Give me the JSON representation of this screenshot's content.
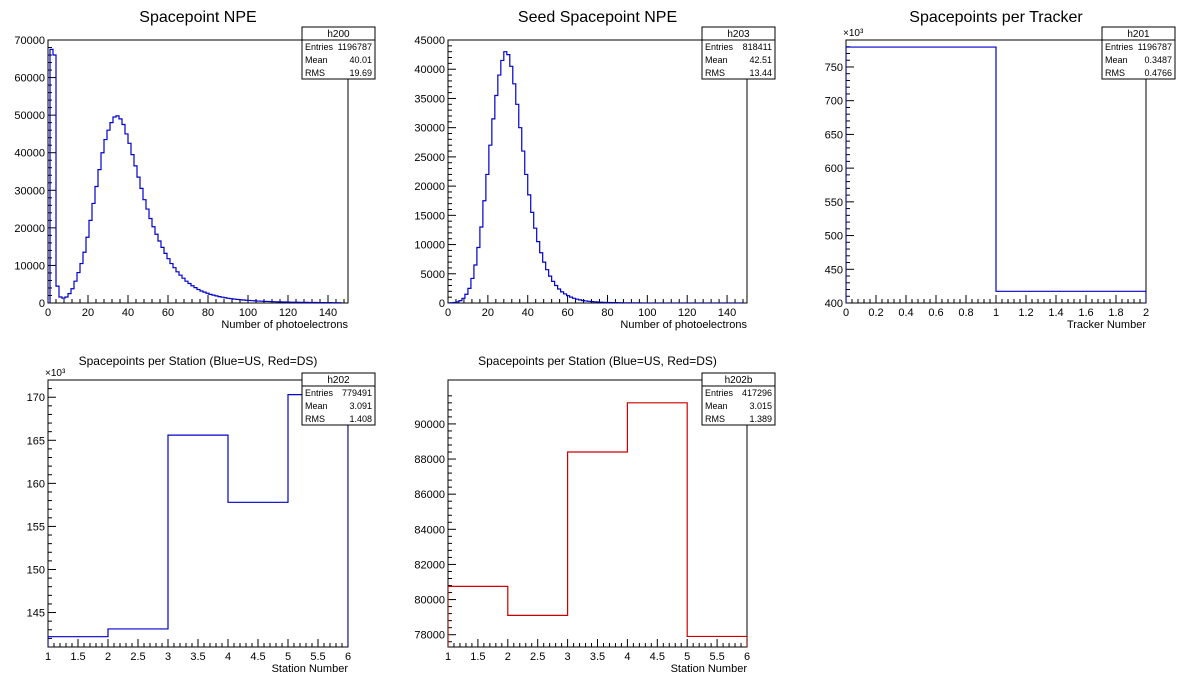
{
  "chart_data": [
    {
      "id": "h200",
      "type": "histogram",
      "title": "Spacepoint NPE",
      "xlabel": "Number of photoelectrons",
      "ylabel": "",
      "xlim": [
        0,
        150
      ],
      "ylim": [
        0,
        70000
      ],
      "xticks": [
        0,
        20,
        40,
        60,
        80,
        100,
        120,
        140
      ],
      "xtick_labels": [
        "0",
        "20",
        "40",
        "60",
        "80",
        "100",
        "120",
        "140"
      ],
      "yticks": [
        0,
        10000,
        20000,
        30000,
        40000,
        50000,
        60000,
        70000
      ],
      "ytick_labels": [
        "0",
        "10000",
        "20000",
        "30000",
        "40000",
        "50000",
        "60000",
        "70000"
      ],
      "y_multiplier": "",
      "line_color": "#0000cc",
      "bin_edges_start": 1,
      "bin_width": 1.5,
      "values": [
        67500,
        66000,
        4500,
        1600,
        1300,
        1600,
        2500,
        3800,
        5800,
        8100,
        10500,
        13500,
        17500,
        22000,
        26500,
        31000,
        35500,
        40000,
        43500,
        46000,
        48000,
        49500,
        49800,
        49000,
        47500,
        45000,
        42500,
        39500,
        36500,
        33500,
        30500,
        27500,
        25000,
        22500,
        20300,
        18300,
        16500,
        14800,
        13200,
        11800,
        10500,
        9400,
        8300,
        7400,
        6600,
        5800,
        5200,
        4600,
        4100,
        3600,
        3200,
        2900,
        2600,
        2300,
        2100,
        1900,
        1700,
        1550,
        1400,
        1250,
        1150,
        1050,
        950,
        880,
        800,
        740,
        680,
        620,
        570,
        520,
        480,
        440,
        410,
        380,
        350,
        320,
        300,
        280,
        260,
        240,
        220,
        200,
        190,
        180,
        170,
        160,
        150,
        140,
        130,
        120,
        110,
        100,
        95,
        90,
        85,
        80,
        75
      ],
      "stats": {
        "name": "h200",
        "rows": [
          {
            "label": "Entries",
            "value": "1196787"
          },
          {
            "label": "Mean",
            "value": "40.01"
          },
          {
            "label": "RMS",
            "value": "19.69"
          }
        ]
      }
    },
    {
      "id": "h203",
      "type": "histogram",
      "title": "Seed Spacepoint NPE",
      "xlabel": "Number of photoelectrons",
      "ylabel": "",
      "xlim": [
        0,
        150
      ],
      "ylim": [
        0,
        45000
      ],
      "xticks": [
        0,
        20,
        40,
        60,
        80,
        100,
        120,
        140
      ],
      "xtick_labels": [
        "0",
        "20",
        "40",
        "60",
        "80",
        "100",
        "120",
        "140"
      ],
      "yticks": [
        0,
        5000,
        10000,
        15000,
        20000,
        25000,
        30000,
        35000,
        40000,
        45000
      ],
      "ytick_labels": [
        "0",
        "5000",
        "10000",
        "15000",
        "20000",
        "25000",
        "30000",
        "35000",
        "40000",
        "45000"
      ],
      "y_multiplier": "",
      "line_color": "#0000cc",
      "bin_edges_start": 1,
      "bin_width": 1.5,
      "values": [
        50,
        100,
        200,
        400,
        800,
        1500,
        2500,
        4200,
        6500,
        9500,
        13000,
        17500,
        22000,
        27000,
        31500,
        35500,
        39000,
        41500,
        43000,
        42500,
        40500,
        37500,
        34000,
        30000,
        26000,
        22000,
        18500,
        15500,
        12800,
        10500,
        8600,
        7000,
        5700,
        4600,
        3700,
        3000,
        2400,
        1900,
        1550,
        1250,
        1000,
        800,
        650,
        530,
        430,
        350,
        290,
        240,
        200,
        170,
        140,
        120,
        100,
        85,
        70,
        60,
        50,
        42,
        36,
        30,
        26,
        22,
        19,
        16,
        14,
        12,
        10,
        9,
        8,
        7,
        6,
        5,
        4,
        4,
        3,
        3,
        2,
        2,
        2,
        1,
        1,
        1,
        1,
        1,
        1,
        1,
        1,
        1,
        1,
        1,
        1,
        1,
        1,
        1,
        1,
        1,
        1,
        1
      ],
      "stats": {
        "name": "h203",
        "rows": [
          {
            "label": "Entries",
            "value": "818411"
          },
          {
            "label": "Mean",
            "value": "42.51"
          },
          {
            "label": "RMS",
            "value": "13.44"
          }
        ]
      }
    },
    {
      "id": "h201",
      "type": "histogram",
      "title": "Spacepoints per Tracker",
      "xlabel": "Tracker Number",
      "ylabel": "",
      "xlim": [
        0,
        2
      ],
      "ylim": [
        400,
        790
      ],
      "xticks": [
        0,
        0.2,
        0.4,
        0.6,
        0.8,
        1,
        1.2,
        1.4,
        1.6,
        1.8,
        2
      ],
      "xtick_labels": [
        "0",
        "0.2",
        "0.4",
        "0.6",
        "0.8",
        "1",
        "1.2",
        "1.4",
        "1.6",
        "1.8",
        "2"
      ],
      "yticks": [
        400,
        450,
        500,
        550,
        600,
        650,
        700,
        750
      ],
      "ytick_labels": [
        "400",
        "450",
        "500",
        "550",
        "600",
        "650",
        "700",
        "750"
      ],
      "y_multiplier": "×10³",
      "line_color": "#0000cc",
      "bin_edges_start": 0,
      "bin_width": 1,
      "values": [
        779.5,
        417.3
      ],
      "stats": {
        "name": "h201",
        "rows": [
          {
            "label": "Entries",
            "value": "1196787"
          },
          {
            "label": "Mean",
            "value": "0.3487"
          },
          {
            "label": "RMS",
            "value": "0.4766"
          }
        ]
      }
    },
    {
      "id": "h202",
      "type": "histogram",
      "title": "Spacepoints per Station (Blue=US, Red=DS)",
      "xlabel": "Station Number",
      "ylabel": "",
      "xlim": [
        1,
        6
      ],
      "ylim": [
        141,
        172
      ],
      "xticks": [
        1,
        1.5,
        2,
        2.5,
        3,
        3.5,
        4,
        4.5,
        5,
        5.5,
        6
      ],
      "xtick_labels": [
        "1",
        "1.5",
        "2",
        "2.5",
        "3",
        "3.5",
        "4",
        "4.5",
        "5",
        "5.5",
        "6"
      ],
      "yticks": [
        145,
        150,
        155,
        160,
        165,
        170
      ],
      "ytick_labels": [
        "145",
        "150",
        "155",
        "160",
        "165",
        "170"
      ],
      "y_multiplier": "×10³",
      "line_color": "#0000cc",
      "bin_edges_start": 1,
      "bin_width": 1,
      "values": [
        142.2,
        143.1,
        165.6,
        157.8,
        170.3
      ],
      "stats": {
        "name": "h202",
        "rows": [
          {
            "label": "Entries",
            "value": "779491"
          },
          {
            "label": "Mean",
            "value": "3.091"
          },
          {
            "label": "RMS",
            "value": "1.408"
          }
        ]
      }
    },
    {
      "id": "h202b",
      "type": "histogram",
      "title": "Spacepoints per Station (Blue=US, Red=DS)",
      "xlabel": "Station Number",
      "ylabel": "",
      "xlim": [
        1,
        6
      ],
      "ylim": [
        77300,
        92500
      ],
      "xticks": [
        1,
        1.5,
        2,
        2.5,
        3,
        3.5,
        4,
        4.5,
        5,
        5.5,
        6
      ],
      "xtick_labels": [
        "1",
        "1.5",
        "2",
        "2.5",
        "3",
        "3.5",
        "4",
        "4.5",
        "5",
        "5.5",
        "6"
      ],
      "yticks": [
        78000,
        80000,
        82000,
        84000,
        86000,
        88000,
        90000
      ],
      "ytick_labels": [
        "78000",
        "80000",
        "82000",
        "84000",
        "86000",
        "88000",
        "90000"
      ],
      "y_multiplier": "",
      "line_color": "#cc0000",
      "bin_edges_start": 1,
      "bin_width": 1,
      "values": [
        80750,
        79100,
        88400,
        91200,
        77900
      ],
      "stats": {
        "name": "h202b",
        "rows": [
          {
            "label": "Entries",
            "value": "417296"
          },
          {
            "label": "Mean",
            "value": "3.015"
          },
          {
            "label": "RMS",
            "value": "1.389"
          }
        ]
      }
    }
  ]
}
